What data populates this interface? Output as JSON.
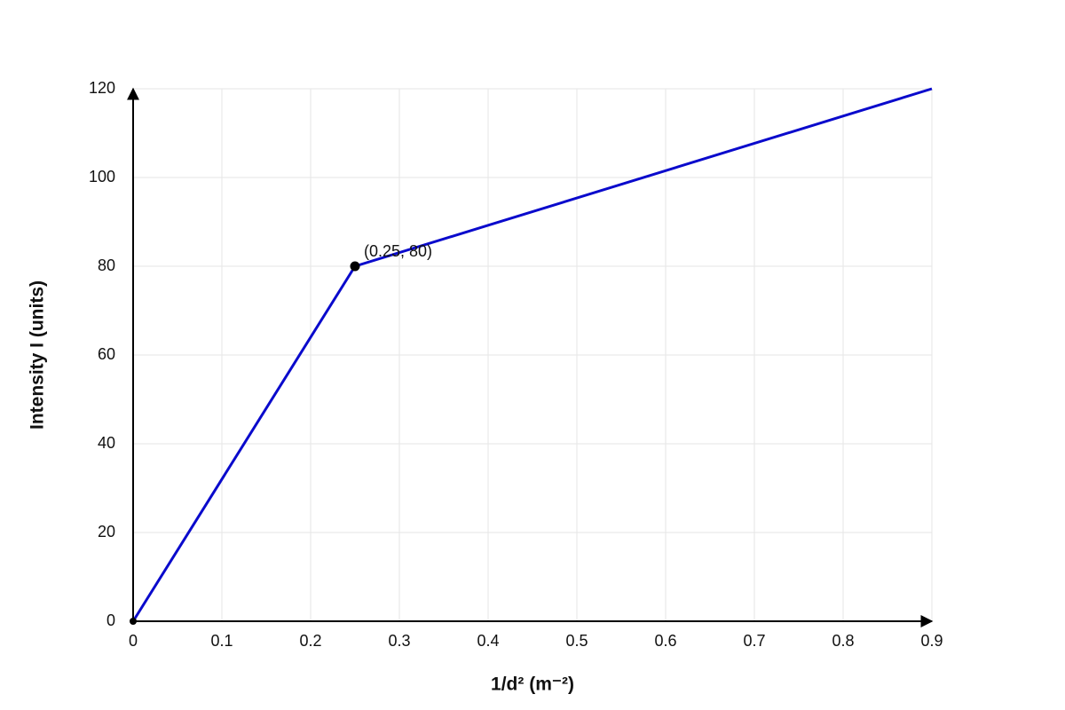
{
  "chart_data": {
    "type": "line",
    "x_label": "1/d² (m⁻²)",
    "y_label": "Intensity I (units)",
    "x": [
      0,
      0.25,
      0.9
    ],
    "series": [
      {
        "color": "#0a0acc",
        "values": [
          0,
          80,
          120
        ]
      }
    ],
    "annotations": [
      {
        "text": "(0.25, 80)",
        "x": 0.25,
        "y": 80
      }
    ],
    "xlim": [
      0,
      0.9
    ],
    "ylim": [
      0,
      120
    ],
    "xticks": [
      0,
      0.1,
      0.2,
      0.3,
      0.4,
      0.5,
      0.6,
      0.7,
      0.8,
      0.9
    ],
    "yticks": [
      0,
      20,
      40,
      60,
      80,
      100,
      120
    ],
    "grid": true
  }
}
